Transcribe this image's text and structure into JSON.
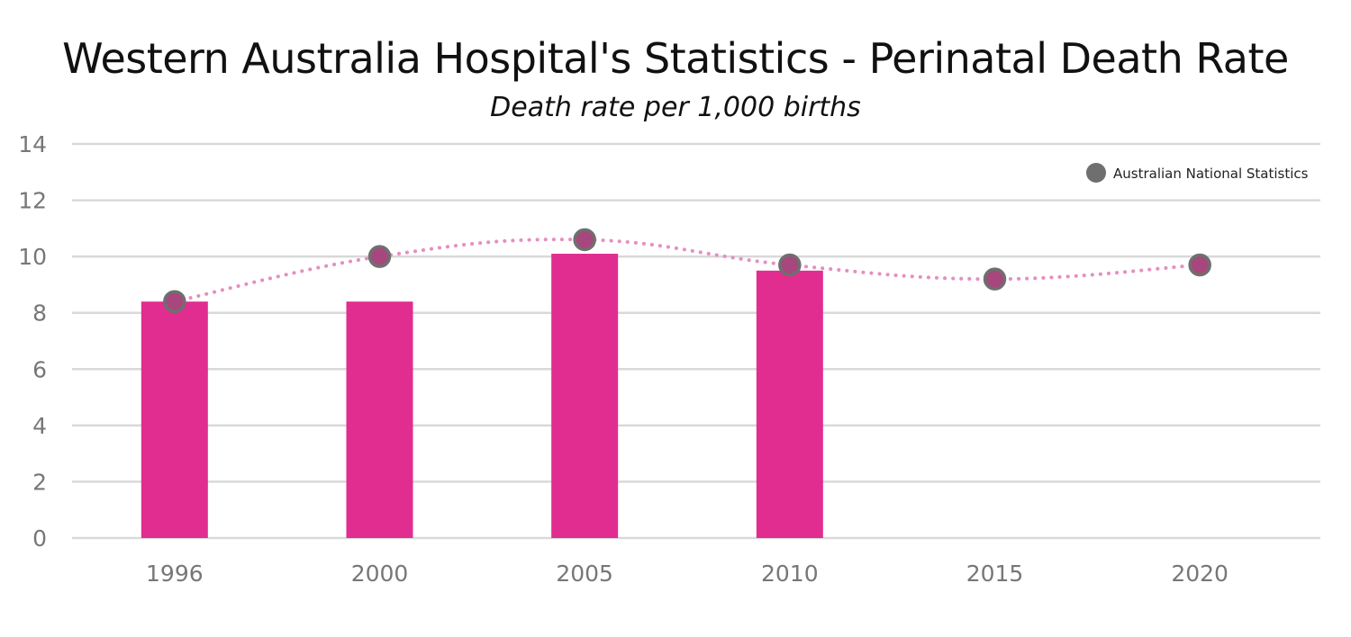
{
  "chart_data": {
    "type": "bar",
    "title": "Western Australia Hospital's Statistics - Perinatal Death Rate",
    "subtitle": "Death rate per 1,000 births",
    "categories": [
      "1996",
      "2000",
      "2005",
      "2010",
      "2015",
      "2020"
    ],
    "series": [
      {
        "type": "bar",
        "values": [
          8.4,
          8.4,
          10.1,
          9.5,
          null,
          null
        ],
        "color": "#e12d8f"
      },
      {
        "type": "line",
        "name": "Australian National Statistics",
        "values": [
          8.4,
          10.0,
          10.6,
          9.7,
          9.2,
          9.7
        ],
        "line_color": "#e58fbf",
        "line_style": "dotted",
        "marker_color": "#6f6f6f"
      }
    ],
    "ylim": [
      0,
      14
    ],
    "yticks": [
      "0",
      "2",
      "4",
      "6",
      "8",
      "10",
      "12",
      "14"
    ],
    "grid": true,
    "legend_position": "top-right"
  }
}
